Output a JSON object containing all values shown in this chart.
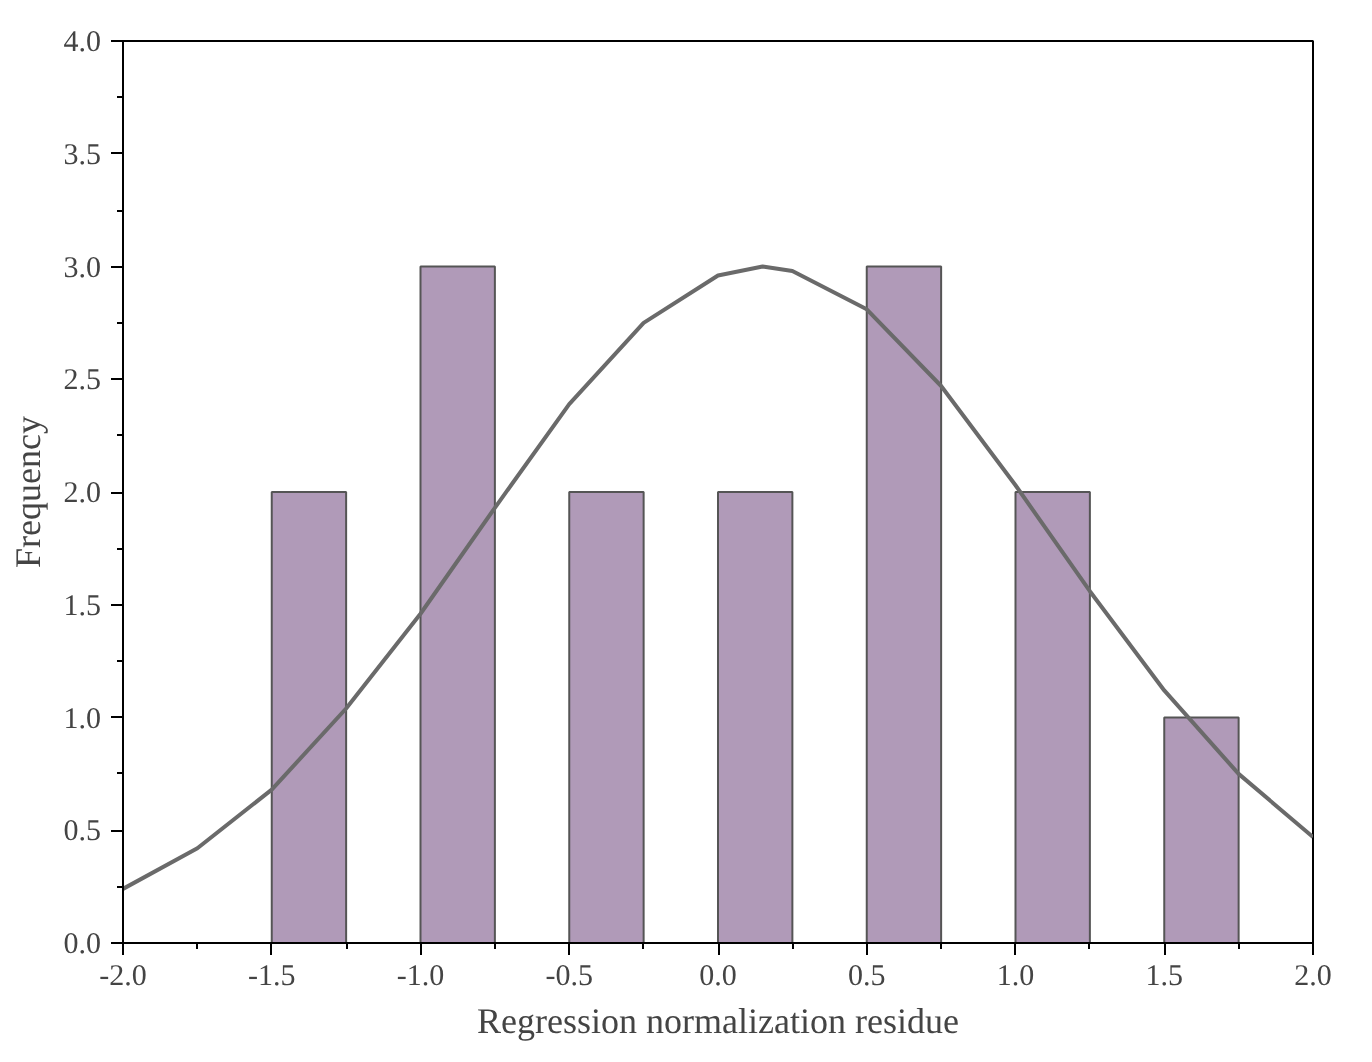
{
  "chart_data": {
    "type": "histogram",
    "xlabel": "Regression normalization residue",
    "ylabel": "Frequency",
    "bins": [
      -1.5,
      -1.25,
      -1.0,
      -0.75,
      -0.5,
      -0.25,
      0.0,
      0.25,
      0.5,
      0.75,
      1.0,
      1.25,
      1.5,
      1.75
    ],
    "values": [
      2,
      0,
      3,
      0,
      2,
      0,
      2,
      0,
      3,
      0,
      2,
      0,
      1
    ],
    "color": "#b09ab8",
    "series": [
      {
        "type": "line",
        "color": "#6a6a6a",
        "x": [
          -2.0,
          -1.75,
          -1.5,
          -1.25,
          -1.0,
          -0.75,
          -0.5,
          -0.25,
          0.0,
          0.15,
          0.25,
          0.5,
          0.75,
          1.0,
          1.25,
          1.5,
          1.75,
          2.0
        ],
        "values": [
          0.24,
          0.42,
          0.68,
          1.04,
          1.46,
          1.93,
          2.39,
          2.75,
          2.96,
          3.0,
          2.98,
          2.81,
          2.47,
          2.03,
          1.56,
          1.12,
          0.75,
          0.47
        ]
      }
    ],
    "xlim": [
      -2.0,
      2.0
    ],
    "xticks": [
      {
        "value": -2.0,
        "label": "-2.0"
      },
      {
        "value": -1.5,
        "label": "-1.5"
      },
      {
        "value": -1.0,
        "label": "-1.0"
      },
      {
        "value": -0.5,
        "label": "-0.5"
      },
      {
        "value": 0.0,
        "label": "0.0"
      },
      {
        "value": 0.5,
        "label": "0.5"
      },
      {
        "value": 1.0,
        "label": "1.0"
      },
      {
        "value": 1.5,
        "label": "1.5"
      },
      {
        "value": 2.0,
        "label": "2.0"
      }
    ],
    "ylim": [
      0.0,
      4.0
    ],
    "yticks": [
      {
        "value": 0.0,
        "label": "0.0"
      },
      {
        "value": 0.5,
        "label": "0.5"
      },
      {
        "value": 1.0,
        "label": "1.0"
      },
      {
        "value": 1.5,
        "label": "1.5"
      },
      {
        "value": 2.0,
        "label": "2.0"
      },
      {
        "value": 2.5,
        "label": "2.5"
      },
      {
        "value": 3.0,
        "label": "3.0"
      },
      {
        "value": 3.5,
        "label": "3.5"
      },
      {
        "value": 4.0,
        "label": "4.0"
      }
    ],
    "grid": false
  }
}
